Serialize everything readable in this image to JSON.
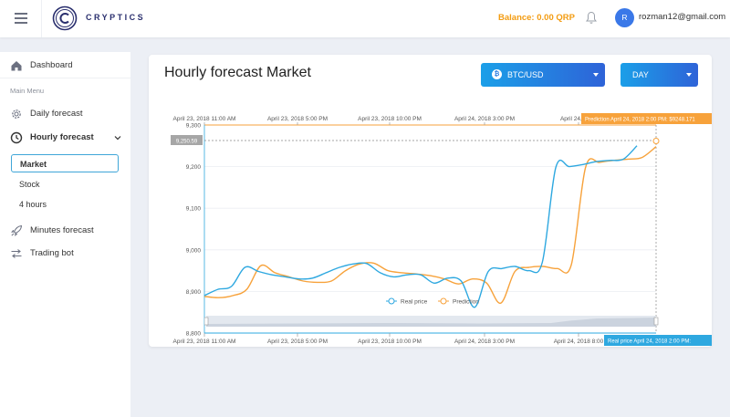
{
  "header": {
    "brand": "CRYPTICS",
    "balance_label": "Balance: 0.00 QRP",
    "avatar_initial": "R",
    "user_email": "rozman12@gmail.com"
  },
  "sidebar": {
    "dashboard": "Dashboard",
    "section_label": "Main Menu",
    "daily": "Daily forecast",
    "hourly": "Hourly forecast",
    "sub_items": [
      "Market",
      "Stock",
      "4 hours"
    ],
    "minutes": "Minutes forecast",
    "trading": "Trading bot"
  },
  "main": {
    "title": "Hourly forecast Market",
    "pair_label": "BTC/USD",
    "range_label": "DAY"
  },
  "colors": {
    "real": "#2ea8e0",
    "prediction": "#f7a23b",
    "accent": "#2a7ee3",
    "balance": "#f39c12"
  },
  "chart_data": {
    "type": "line",
    "x_ticks": [
      "April 23, 2018 11:00 AM",
      "April 23, 2018 5:00 PM",
      "April 23, 2018 10:00 PM",
      "April 24, 2018 3:00 PM",
      "April 24, 2018 8:00"
    ],
    "x_ticks_top": [
      "April 23, 2018 11:00 AM",
      "April 23, 2018 5:00 PM",
      "April 23, 2018 10:00 PM",
      "April 24, 2018 3:00 PM",
      "April 24, 2018"
    ],
    "y_ticks": [
      "9,300",
      "9,200",
      "9,100",
      "9,000",
      "8,900",
      "8,800"
    ],
    "ylim": [
      8800,
      9300
    ],
    "hover_value": "9,250.59",
    "tooltip_prediction": "Prediction  April 24, 2018 2:00 PM: $9248.171",
    "tooltip_real": "Real price  April 24, 2018 2:00 PM:",
    "legend": [
      "Real price",
      "Prediction"
    ],
    "series": [
      {
        "name": "Real price",
        "values": [
          8890,
          8905,
          8912,
          8958,
          8948,
          8940,
          8935,
          8930,
          8932,
          8945,
          8958,
          8966,
          8967,
          8945,
          8935,
          8940,
          8940,
          8920,
          8932,
          8925,
          8862,
          8948,
          8955,
          8960,
          8950,
          8970,
          9198,
          9200,
          9205,
          9212,
          9215,
          9218,
          9250
        ]
      },
      {
        "name": "Prediction",
        "values": [
          8888,
          8885,
          8890,
          8905,
          8962,
          8945,
          8935,
          8925,
          8922,
          8925,
          8950,
          8966,
          8968,
          8950,
          8945,
          8942,
          8938,
          8930,
          8918,
          8930,
          8920,
          8872,
          8948,
          8958,
          8960,
          8955,
          8965,
          9198,
          9210,
          9215,
          9218,
          9222,
          9248
        ]
      }
    ]
  }
}
